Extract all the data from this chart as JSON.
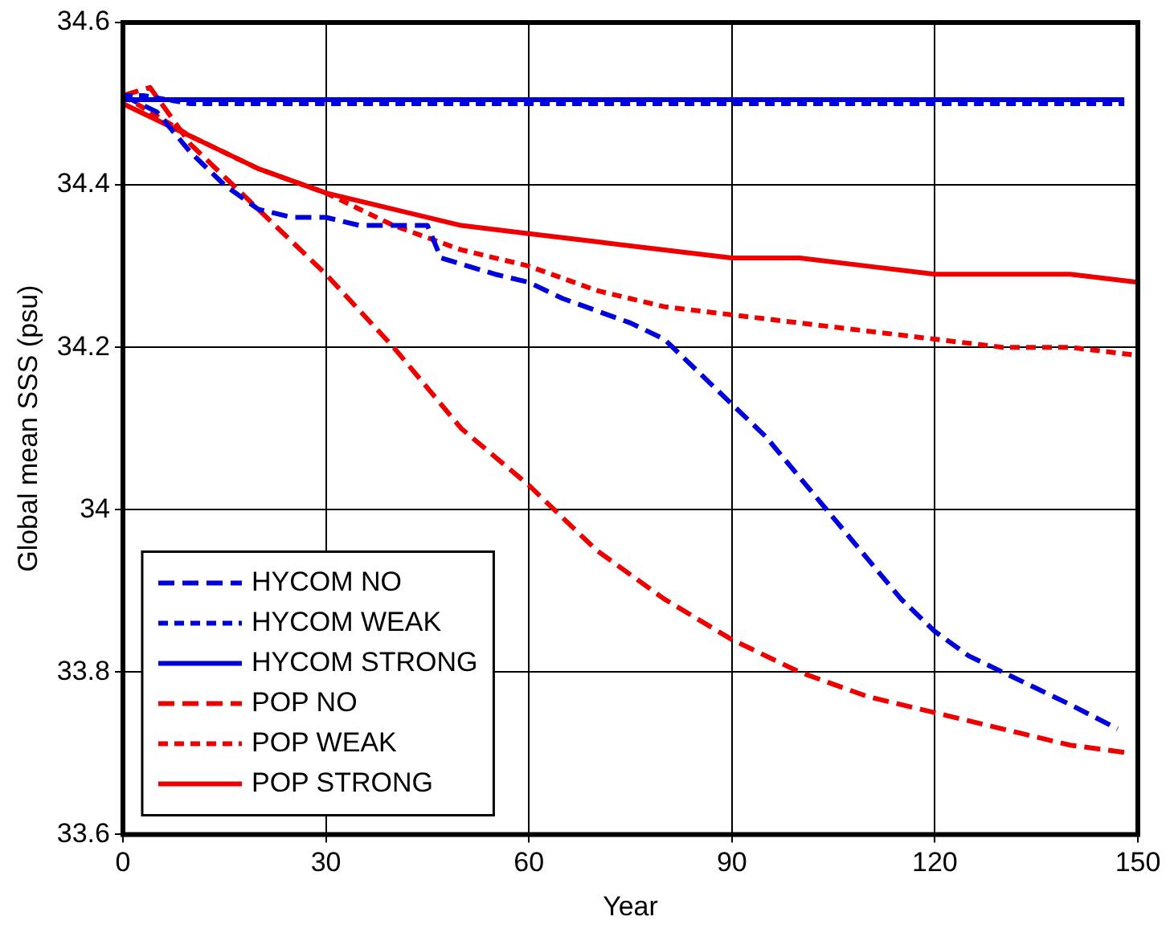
{
  "chart_data": {
    "type": "line",
    "xlabel": "Year",
    "ylabel": "Global mean SSS (psu)",
    "xlim": [
      0,
      150
    ],
    "xticks": [
      0,
      30,
      60,
      90,
      120,
      150
    ],
    "ylim": [
      33.6,
      34.6
    ],
    "yticks": [
      {
        "value": 33.6,
        "label": "33.6"
      },
      {
        "value": 33.8,
        "label": "33.8"
      },
      {
        "value": 34,
        "label": "34"
      },
      {
        "value": 34.2,
        "label": "34.2"
      },
      {
        "value": 34.4,
        "label": "34.4"
      },
      {
        "value": 34.6,
        "label": "34.6"
      }
    ],
    "grid": true,
    "legend": "bottom left",
    "marker": "none",
    "series": [
      {
        "name": "HYCOM NO",
        "color": "#0000dd",
        "line_style": "dashed",
        "x": [
          0,
          5,
          10,
          15,
          20,
          25,
          30,
          35,
          45,
          47,
          55,
          60,
          65,
          75,
          80,
          85,
          90,
          95,
          100,
          105,
          110,
          115,
          120,
          125,
          130,
          135,
          140,
          147
        ],
        "values": [
          34.51,
          34.49,
          34.44,
          34.4,
          34.37,
          34.36,
          34.36,
          34.35,
          34.35,
          34.31,
          34.29,
          34.28,
          34.26,
          34.23,
          34.21,
          34.17,
          34.13,
          34.09,
          34.04,
          33.99,
          33.94,
          33.89,
          33.85,
          33.82,
          33.8,
          33.78,
          33.76,
          33.73
        ]
      },
      {
        "name": "HYCOM WEAK",
        "color": "#0000dd",
        "line_style": "dotted",
        "x": [
          0,
          3,
          10,
          30,
          60,
          90,
          120,
          148
        ],
        "values": [
          34.51,
          34.51,
          34.5,
          34.5,
          34.5,
          34.5,
          34.5,
          34.5
        ]
      },
      {
        "name": "HYCOM STRONG",
        "color": "#0000dd",
        "line_style": "solid",
        "x": [
          0,
          3,
          10,
          30,
          60,
          90,
          120,
          148
        ],
        "values": [
          34.505,
          34.505,
          34.505,
          34.505,
          34.505,
          34.505,
          34.505,
          34.505
        ]
      },
      {
        "name": "POP NO",
        "color": "#ee0000",
        "line_style": "dashed",
        "x": [
          0,
          4,
          10,
          20,
          30,
          40,
          50,
          60,
          70,
          80,
          90,
          100,
          110,
          120,
          130,
          140,
          149
        ],
        "values": [
          34.51,
          34.52,
          34.45,
          34.37,
          34.29,
          34.2,
          34.1,
          34.03,
          33.95,
          33.89,
          33.84,
          33.8,
          33.77,
          33.75,
          33.73,
          33.71,
          33.7
        ]
      },
      {
        "name": "POP WEAK",
        "color": "#ee0000",
        "line_style": "dotted",
        "x": [
          0,
          10,
          20,
          30,
          40,
          50,
          60,
          70,
          80,
          90,
          100,
          110,
          120,
          130,
          140,
          150
        ],
        "values": [
          34.51,
          34.46,
          34.42,
          34.39,
          34.35,
          34.32,
          34.3,
          34.27,
          34.25,
          34.24,
          34.23,
          34.22,
          34.21,
          34.2,
          34.2,
          34.19
        ]
      },
      {
        "name": "POP STRONG",
        "color": "#ee0000",
        "line_style": "solid",
        "x": [
          0,
          10,
          20,
          30,
          40,
          50,
          60,
          70,
          80,
          90,
          100,
          110,
          120,
          130,
          140,
          150
        ],
        "values": [
          34.5,
          34.46,
          34.42,
          34.39,
          34.37,
          34.35,
          34.34,
          34.33,
          34.32,
          34.31,
          34.31,
          34.3,
          34.29,
          34.29,
          34.29,
          34.28
        ]
      }
    ]
  }
}
